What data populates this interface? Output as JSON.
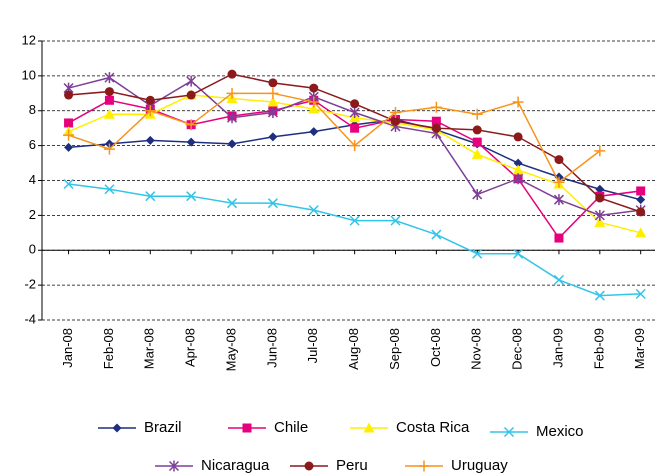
{
  "chart_data": {
    "type": "line",
    "categories": [
      "Jan-08",
      "Feb-08",
      "Mar-08",
      "Apr-08",
      "May-08",
      "Jun-08",
      "Jul-08",
      "Aug-08",
      "Sep-08",
      "Oct-08",
      "Nov-08",
      "Dec-08",
      "Jan-09",
      "Feb-09",
      "Mar-09"
    ],
    "series": [
      {
        "name": "Brazil",
        "color": "#1f2f7f",
        "marker": "diamond",
        "values": [
          5.9,
          6.1,
          6.3,
          6.2,
          6.1,
          6.5,
          6.8,
          7.2,
          7.5,
          6.9,
          6.1,
          5.0,
          4.2,
          3.5,
          2.9
        ]
      },
      {
        "name": "Chile",
        "color": "#e6007e",
        "marker": "square",
        "values": [
          7.3,
          8.6,
          8.1,
          7.2,
          7.7,
          8.0,
          8.6,
          7.0,
          7.5,
          7.4,
          6.2,
          4.1,
          0.7,
          3.1,
          3.4
        ]
      },
      {
        "name": "Costa Rica",
        "color": "#ffee00",
        "marker": "triangle",
        "values": [
          6.8,
          7.8,
          7.8,
          8.9,
          8.7,
          8.5,
          8.1,
          7.6,
          7.3,
          6.9,
          5.5,
          4.6,
          3.8,
          1.6,
          1.0
        ]
      },
      {
        "name": "Mexico",
        "color": "#33c4e8",
        "marker": "x",
        "values": [
          3.8,
          3.5,
          3.1,
          3.1,
          2.7,
          2.7,
          2.3,
          1.7,
          1.7,
          0.9,
          -0.2,
          -0.2,
          -1.7,
          -2.6,
          -2.5
        ]
      },
      {
        "name": "Nicaragua",
        "color": "#7f3f98",
        "marker": "star",
        "values": [
          9.3,
          9.9,
          8.3,
          9.7,
          7.6,
          7.9,
          8.8,
          7.9,
          7.1,
          6.7,
          3.2,
          4.1,
          2.9,
          2.0,
          2.3
        ]
      },
      {
        "name": "Peru",
        "color": "#8b1a1a",
        "marker": "circle",
        "values": [
          8.9,
          9.1,
          8.6,
          8.9,
          10.1,
          9.6,
          9.3,
          8.4,
          7.4,
          7.0,
          6.9,
          6.5,
          5.2,
          3.0,
          2.2
        ]
      },
      {
        "name": "Uruguay",
        "color": "#f7941d",
        "marker": "plus",
        "values": [
          6.6,
          5.8,
          8.0,
          7.2,
          9.0,
          9.0,
          8.5,
          6.0,
          7.9,
          8.2,
          7.8,
          8.5,
          3.9,
          5.7,
          null
        ]
      }
    ],
    "ylim": [
      -4,
      12
    ],
    "yticks": [
      -4,
      -2,
      0,
      2,
      4,
      6,
      8,
      10,
      12
    ],
    "grid": true
  }
}
